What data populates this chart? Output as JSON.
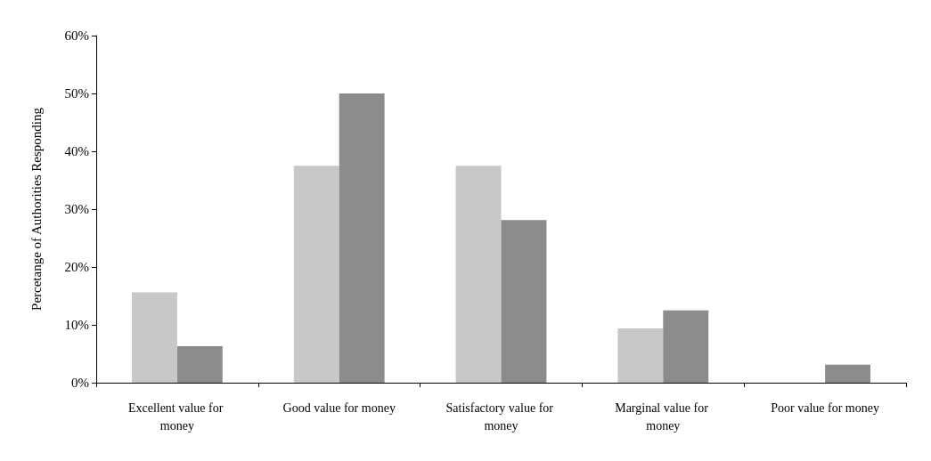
{
  "chart_data": {
    "type": "bar",
    "ylabel": "Percetange of Authorities Responding",
    "categories": [
      "Excellent value for money",
      "Good value for money",
      "Satisfactory value for money",
      "Marginal value for money",
      "Poor value for money"
    ],
    "series": [
      {
        "color": "#c8c8c8",
        "values": [
          15.6,
          37.5,
          37.5,
          9.4,
          0
        ]
      },
      {
        "color": "#8c8c8c",
        "values": [
          6.3,
          50,
          28.1,
          12.5,
          3.1
        ]
      }
    ],
    "ylim": [
      0,
      60
    ],
    "yticks": [
      {
        "value": 0,
        "label": "0%"
      },
      {
        "value": 10,
        "label": "10%"
      },
      {
        "value": 20,
        "label": "20%"
      },
      {
        "value": 30,
        "label": "30%"
      },
      {
        "value": 40,
        "label": "40%"
      },
      {
        "value": 50,
        "label": "50%"
      },
      {
        "value": 60,
        "label": "60%"
      }
    ],
    "grid": false
  }
}
